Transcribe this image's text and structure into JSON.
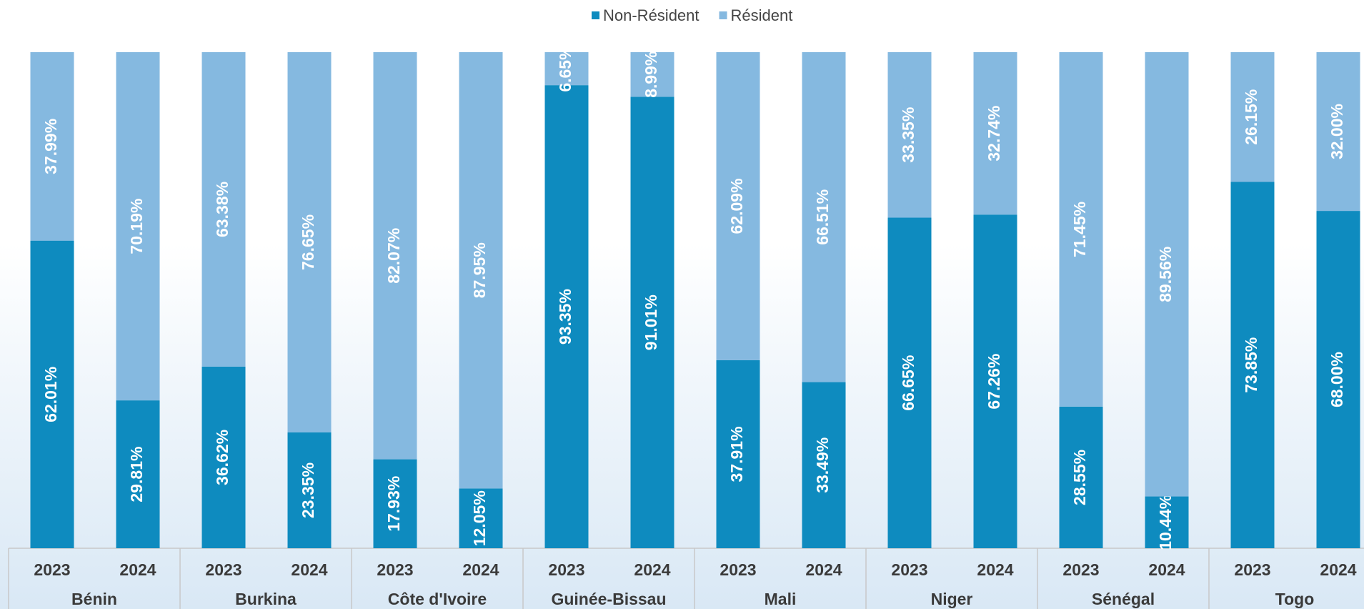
{
  "chart_data": {
    "type": "stacked_bar_percent",
    "groups": [
      "Bénin",
      "Burkina",
      "Côte d'Ivoire",
      "Guinée-Bissau",
      "Mali",
      "Niger",
      "Sénégal",
      "Togo"
    ],
    "categories": [
      "2023",
      "2024",
      "2023",
      "2024",
      "2023",
      "2024",
      "2023",
      "2024",
      "2023",
      "2024",
      "2023",
      "2024",
      "2023",
      "2024",
      "2023",
      "2024"
    ],
    "series": [
      {
        "name": "Non-Résident",
        "color": "#0e8bbf",
        "values": [
          62.01,
          29.81,
          36.62,
          23.35,
          17.93,
          12.05,
          93.35,
          91.01,
          37.91,
          33.49,
          66.65,
          67.26,
          28.55,
          10.44,
          73.85,
          68.0
        ],
        "value_labels": [
          "62.01%",
          "29.81%",
          "36.62%",
          "23.35%",
          "17.93%",
          "12.05%",
          "93.35%",
          "91.01%",
          "37.91%",
          "33.49%",
          "66.65%",
          "67.26%",
          "28.55%",
          "10.44%",
          "73.85%",
          "68.00%"
        ]
      },
      {
        "name": "Résident",
        "color": "#85b9e0",
        "values": [
          37.99,
          70.19,
          63.38,
          76.65,
          82.07,
          87.95,
          6.65,
          8.99,
          62.09,
          66.51,
          33.35,
          32.74,
          71.45,
          89.56,
          26.15,
          32.0
        ],
        "value_labels": [
          "37.99%",
          "70.19%",
          "63.38%",
          "76.65%",
          "82.07%",
          "87.95%",
          "6.65%",
          "8.99%",
          "62.09%",
          "66.51%",
          "33.35%",
          "32.74%",
          "71.45%",
          "89.56%",
          "26.15%",
          "32.00%"
        ]
      }
    ],
    "ylim": [
      0,
      100
    ]
  }
}
